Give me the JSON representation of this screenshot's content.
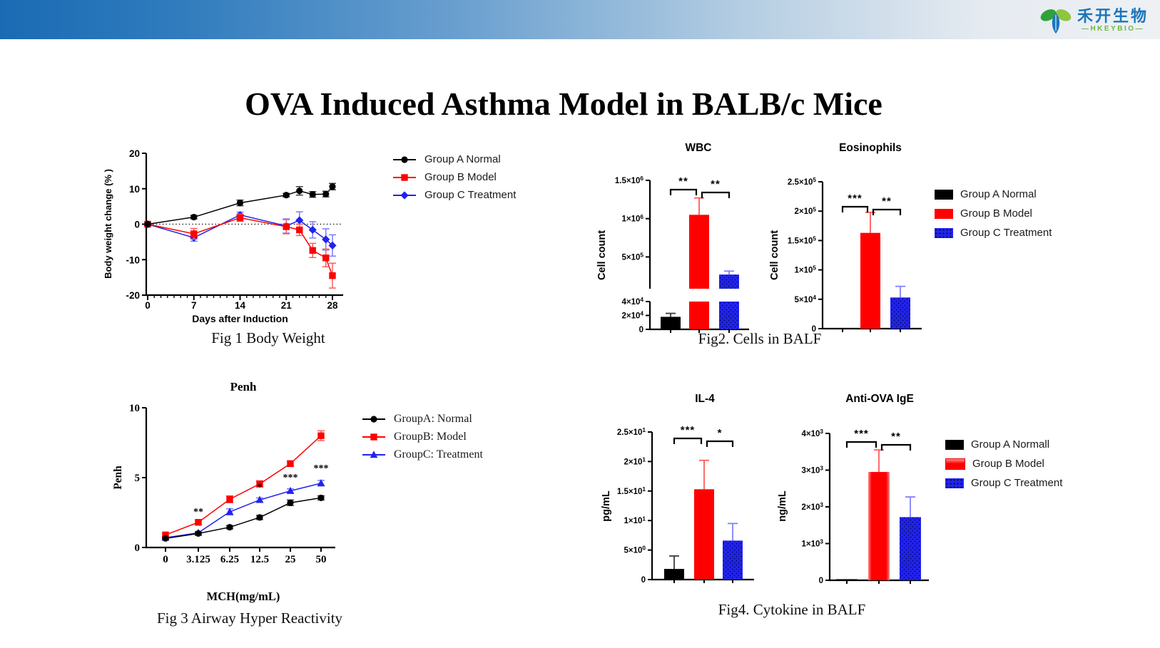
{
  "page": {
    "title": "OVA Induced Asthma Model in BALB/c Mice"
  },
  "brand": {
    "name_cn": "禾开生物",
    "name_en": "—HKEYBIO—",
    "blue": "#1b75bb",
    "green": "#6fb544"
  },
  "colors": {
    "groupA": "#000000",
    "groupB": "#ff0000",
    "groupC": "#2222f0",
    "errA": "#3c3c3c",
    "errB": "#ff5c5c",
    "errC": "#7b7bff"
  },
  "figures": {
    "fig1": {
      "caption": "Fig 1 Body Weight",
      "legend": [
        {
          "label": "Group A Normal",
          "marker": "circle",
          "color": "#000000"
        },
        {
          "label": "Group B Model",
          "marker": "square",
          "color": "#ff0000"
        },
        {
          "label": "Group C Treatment",
          "marker": "diamond",
          "color": "#2222f0"
        }
      ]
    },
    "fig2": {
      "caption": "Fig2. Cells in BALF",
      "legend": [
        {
          "label": "Group A Normal",
          "swatch": "black"
        },
        {
          "label": "Group B Model",
          "swatch": "red"
        },
        {
          "label": "Group C Treatment",
          "swatch": "blue-dots"
        }
      ]
    },
    "fig3": {
      "caption": "Fig 3 Airway Hyper Reactivity",
      "legend": [
        {
          "label": "GroupA: Normal",
          "marker": "circle",
          "color": "#000000"
        },
        {
          "label": "GroupB: Model",
          "marker": "square",
          "color": "#ff0000"
        },
        {
          "label": "GroupC: Treatment",
          "marker": "triangle",
          "color": "#2222f0"
        }
      ]
    },
    "fig4": {
      "caption": "Fig4. Cytokine in BALF",
      "legend": [
        {
          "label": "Group A Normall",
          "swatch": "black"
        },
        {
          "label": "Group B Model",
          "swatch": "red-grad"
        },
        {
          "label": "Group C Treatment",
          "swatch": "blue-dots"
        }
      ]
    }
  },
  "chart_data": [
    {
      "id": "body-weight",
      "type": "line",
      "title": "",
      "ylabel": "Body weight change (% )",
      "xlabel": "Days after Induction",
      "ylim": [
        -20,
        20
      ],
      "yticks": [
        -20,
        -10,
        0,
        10,
        20
      ],
      "x": [
        0,
        7,
        14,
        21,
        23,
        25,
        27,
        28
      ],
      "xticks": [
        0,
        7,
        14,
        21,
        28
      ],
      "zero_line": true,
      "grid": false,
      "legend_position": "right",
      "series": [
        {
          "name": "Group A Normal",
          "marker": "circle",
          "color": "#000000",
          "err_color": "#3c3c3c",
          "values": [
            0,
            2.0,
            6.0,
            8.2,
            9.4,
            8.4,
            8.5,
            10.6
          ],
          "errors": [
            0.3,
            0.5,
            0.8,
            0.5,
            1.2,
            0.8,
            0.8,
            0.9
          ]
        },
        {
          "name": "Group B Model",
          "marker": "square",
          "color": "#ff0000",
          "err_color": "#ff5c5c",
          "values": [
            0,
            -2.7,
            1.8,
            -0.7,
            -1.6,
            -7.4,
            -9.5,
            -14.5
          ],
          "errors": [
            0.3,
            1.5,
            1.0,
            2.0,
            1.6,
            2.0,
            2.5,
            3.5
          ]
        },
        {
          "name": "Group C Treatment",
          "marker": "diamond",
          "color": "#2222f0",
          "err_color": "#7b7bff",
          "values": [
            0,
            -3.8,
            2.6,
            -0.5,
            1.1,
            -1.6,
            -4.3,
            -6.0
          ],
          "errors": [
            0.3,
            1.0,
            0.8,
            2.0,
            2.4,
            2.3,
            3.0,
            3.0
          ]
        }
      ],
      "annotations": []
    },
    {
      "id": "wbc",
      "type": "bar",
      "title": "WBC",
      "ylabel": "Cell count",
      "categories": [
        "Group A Normal",
        "Group B Model",
        "Group C Treatment"
      ],
      "values": [
        18000,
        1050000,
        270000
      ],
      "errors": [
        5000,
        220000,
        45000
      ],
      "bar_styles": [
        "black",
        "red",
        "blue-dots"
      ],
      "axis_break": {
        "lower_max": 40000,
        "upper_min": 85000,
        "upper_max": 1500000,
        "lower_ticks": [
          {
            "v": 0,
            "label": "0"
          },
          {
            "v": 20000,
            "label": "2×10^4"
          },
          {
            "v": 40000,
            "label": "4×10^4"
          }
        ],
        "upper_ticks": [
          {
            "v": 500000,
            "label": "5×10^5"
          },
          {
            "v": 1000000,
            "label": "1×10^6"
          },
          {
            "v": 1500000,
            "label": "1.5×10^6"
          }
        ]
      },
      "sig": [
        {
          "from": 0,
          "to": 1,
          "label": "**"
        },
        {
          "from": 1,
          "to": 2,
          "label": "**"
        }
      ]
    },
    {
      "id": "eosinophils",
      "type": "bar",
      "title": "Eosinophils",
      "ylabel": "Cell count",
      "categories": [
        "Group A Normal",
        "Group B Model",
        "Group C Treatment"
      ],
      "values": [
        1200,
        163000,
        53000
      ],
      "errors": [
        0,
        35000,
        19000
      ],
      "bar_styles": [
        "black",
        "red",
        "blue-dots"
      ],
      "ymax": 250000,
      "yticks": [
        {
          "v": 0,
          "label": "0"
        },
        {
          "v": 50000,
          "label": "5×10^4"
        },
        {
          "v": 100000,
          "label": "1×10^5"
        },
        {
          "v": 150000,
          "label": "1.5×10^5"
        },
        {
          "v": 200000,
          "label": "2×10^5"
        },
        {
          "v": 250000,
          "label": "2.5×10^5"
        }
      ],
      "sig": [
        {
          "from": 0,
          "to": 1,
          "label": "***"
        },
        {
          "from": 1,
          "to": 2,
          "label": "**"
        }
      ]
    },
    {
      "id": "penh",
      "type": "line",
      "title": "Penh",
      "ylabel": "Penh",
      "xlabel": "MCH(mg/mL)",
      "ylim": [
        0,
        10
      ],
      "yticks": [
        0,
        5,
        10
      ],
      "categories": [
        "0",
        "3.125",
        "6.25",
        "12.5",
        "25",
        "50"
      ],
      "zero_line": false,
      "grid": false,
      "legend_position": "right",
      "series": [
        {
          "name": "GroupA: Normal",
          "marker": "circle",
          "color": "#000000",
          "err_color": "#3c3c3c",
          "values": [
            0.65,
            1.0,
            1.45,
            2.15,
            3.2,
            3.55
          ],
          "errors": [
            0.08,
            0.1,
            0.12,
            0.15,
            0.2,
            0.15
          ]
        },
        {
          "name": "GroupB: Model",
          "marker": "square",
          "color": "#ff0000",
          "err_color": "#ff5c5c",
          "values": [
            0.9,
            1.8,
            3.45,
            4.55,
            6.0,
            8.0
          ],
          "errors": [
            0.08,
            0.15,
            0.25,
            0.22,
            0.2,
            0.35
          ]
        },
        {
          "name": "GroupC: Treatment",
          "marker": "triangle",
          "color": "#2222f0",
          "err_color": "#7b7bff",
          "values": [
            0.7,
            1.05,
            2.55,
            3.4,
            4.05,
            4.6
          ],
          "errors": [
            0.08,
            0.1,
            0.22,
            0.15,
            0.15,
            0.2
          ]
        }
      ],
      "annotations": [
        {
          "xi": 1,
          "y": 2.35,
          "text": "**"
        },
        {
          "xi": 3,
          "y": 4.1,
          "text": "*"
        },
        {
          "xi": 4,
          "y": 4.8,
          "text": "***"
        },
        {
          "xi": 5,
          "y": 5.45,
          "text": "***"
        }
      ]
    },
    {
      "id": "il4",
      "type": "bar",
      "title": "IL-4",
      "ylabel": "pg/mL",
      "categories": [
        "Group A Normall",
        "Group B Model",
        "Group C Treatment"
      ],
      "values": [
        1.8,
        15.3,
        6.6
      ],
      "errors": [
        2.2,
        4.9,
        2.9
      ],
      "bar_styles": [
        "black",
        "red",
        "blue-dots"
      ],
      "ymax": 25,
      "yticks": [
        {
          "v": 0,
          "label": "0"
        },
        {
          "v": 5,
          "label": "5×10^0"
        },
        {
          "v": 10,
          "label": "1×10^1"
        },
        {
          "v": 15,
          "label": "1.5×10^1"
        },
        {
          "v": 20,
          "label": "2×10^1"
        },
        {
          "v": 25,
          "label": "2.5×10^1"
        }
      ],
      "sig": [
        {
          "from": 0,
          "to": 1,
          "label": "***"
        },
        {
          "from": 1,
          "to": 2,
          "label": "*"
        }
      ]
    },
    {
      "id": "ige",
      "type": "bar",
      "title": "Anti-OVA IgE",
      "ylabel": "ng/mL",
      "categories": [
        "Group A Normall",
        "Group B Model",
        "Group C Treatment"
      ],
      "values": [
        30,
        2950,
        1720
      ],
      "errors": [
        0,
        600,
        550
      ],
      "bar_styles": [
        "black",
        "red-grad",
        "blue-dots"
      ],
      "ymax": 4000,
      "yticks": [
        {
          "v": 0,
          "label": "0"
        },
        {
          "v": 1000,
          "label": "1×10^3"
        },
        {
          "v": 2000,
          "label": "2×10^3"
        },
        {
          "v": 3000,
          "label": "3×10^3"
        },
        {
          "v": 4000,
          "label": "4×10^3"
        }
      ],
      "sig": [
        {
          "from": 0,
          "to": 1,
          "label": "***"
        },
        {
          "from": 1,
          "to": 2,
          "label": "**"
        }
      ]
    }
  ]
}
